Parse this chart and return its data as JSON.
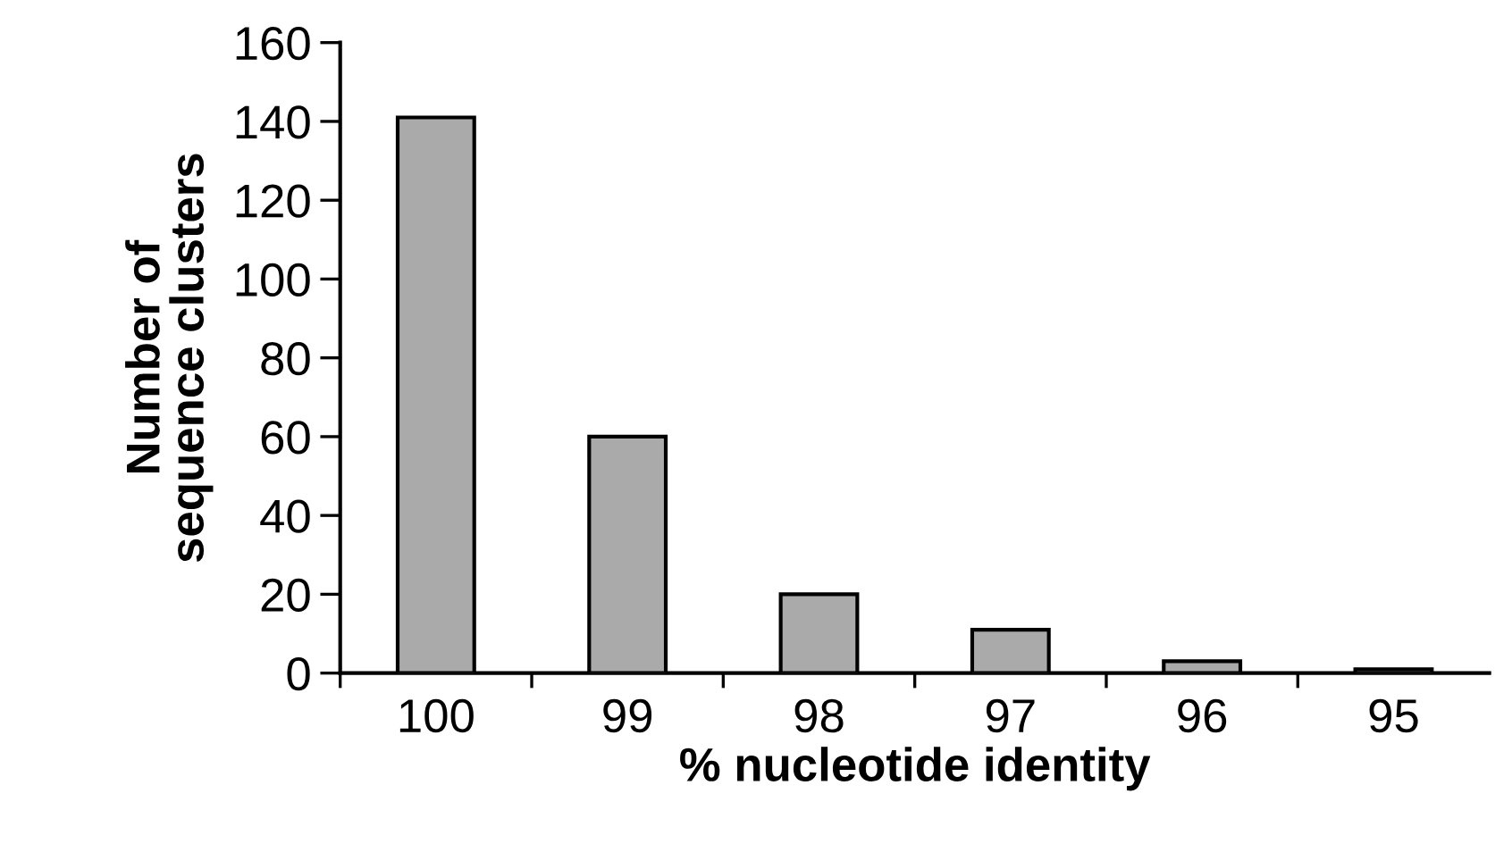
{
  "chart_data": {
    "type": "bar",
    "xlabel": "% nucleotide identity",
    "ylabel": "Number of\nsequence clusters",
    "categories": [
      "100",
      "99",
      "98",
      "97",
      "96",
      "95"
    ],
    "values": [
      141,
      60,
      20,
      11,
      3,
      1
    ],
    "color": "#aaaaaa",
    "ylim": [
      0,
      160
    ],
    "yticks": [
      0,
      20,
      40,
      60,
      80,
      100,
      120,
      140,
      160
    ],
    "grid": false
  }
}
